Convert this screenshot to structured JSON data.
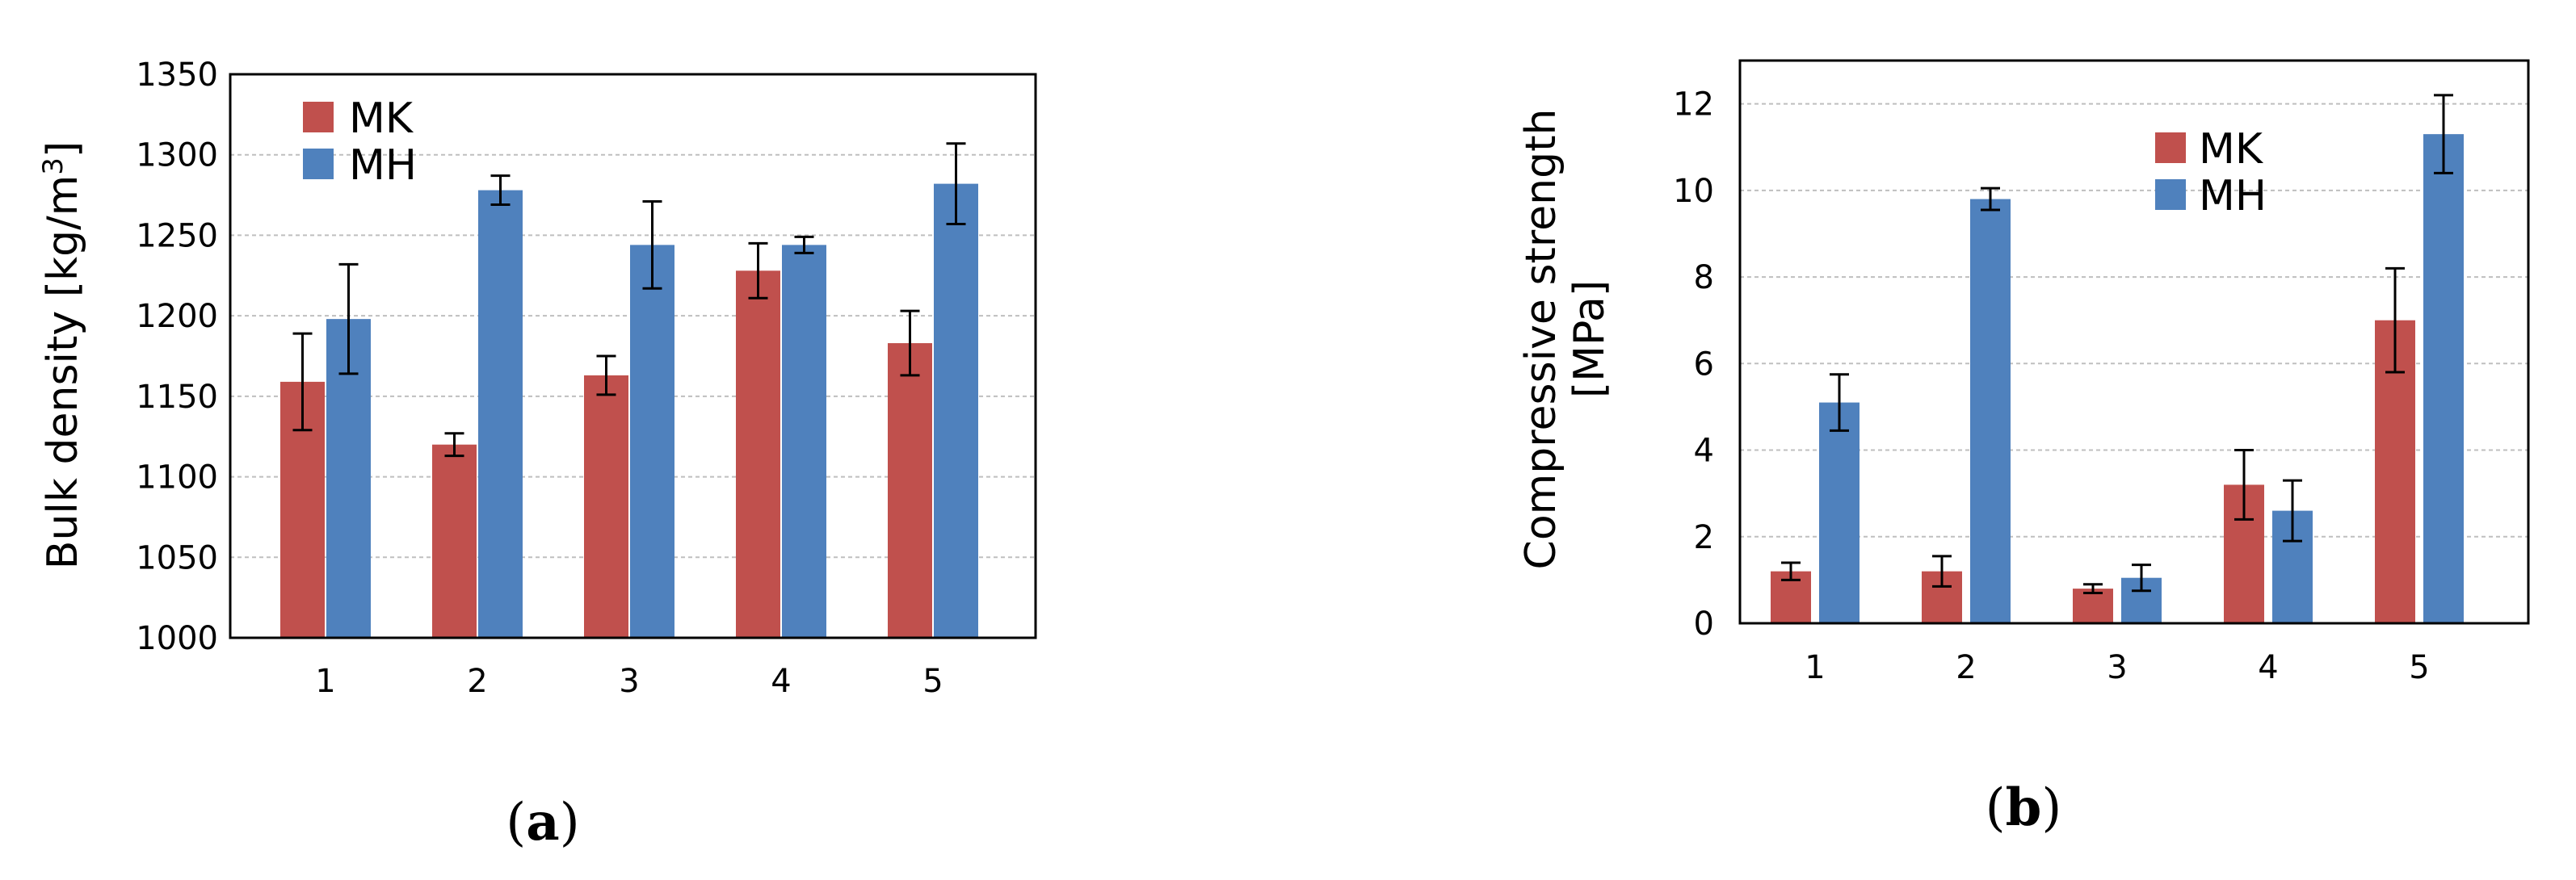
{
  "chart_data": [
    {
      "type": "bar",
      "panel_label": "a",
      "xlabel": "",
      "ylabel": "Bulk density [kg/m",
      "ylabel_superscript": "3",
      "ylabel_suffix": "]",
      "categories": [
        "1",
        "2",
        "3",
        "4",
        "5"
      ],
      "ylim": [
        1000,
        1350
      ],
      "yticks": [
        1000,
        1050,
        1100,
        1150,
        1200,
        1250,
        1300,
        1350
      ],
      "grid": true,
      "legend_position": "top-left",
      "series": [
        {
          "name": "MK",
          "color": "#c0504d",
          "values": [
            1159,
            1120,
            1163,
            1228,
            1183
          ],
          "errors": [
            30,
            7,
            12,
            17,
            20
          ]
        },
        {
          "name": "MH",
          "color": "#4f81bd",
          "values": [
            1198,
            1278,
            1244,
            1244,
            1282
          ],
          "errors": [
            34,
            9,
            27,
            5,
            25
          ]
        }
      ]
    },
    {
      "type": "bar",
      "panel_label": "b",
      "xlabel": "",
      "ylabel_line1": "Compressive strength",
      "ylabel_line2": "[MPa]",
      "categories": [
        "1",
        "2",
        "3",
        "4",
        "5"
      ],
      "ylim": [
        0,
        13
      ],
      "yticks": [
        0,
        2,
        4,
        6,
        8,
        10,
        12
      ],
      "grid": true,
      "legend_position": "top-right",
      "series": [
        {
          "name": "MK",
          "color": "#c0504d",
          "values": [
            1.2,
            1.2,
            0.8,
            3.2,
            7.0
          ],
          "errors": [
            0.2,
            0.35,
            0.1,
            0.8,
            1.2
          ]
        },
        {
          "name": "MH",
          "color": "#4f81bd",
          "values": [
            5.1,
            9.8,
            1.05,
            2.6,
            11.3
          ],
          "errors": [
            0.65,
            0.25,
            0.3,
            0.7,
            0.9
          ]
        }
      ]
    }
  ]
}
